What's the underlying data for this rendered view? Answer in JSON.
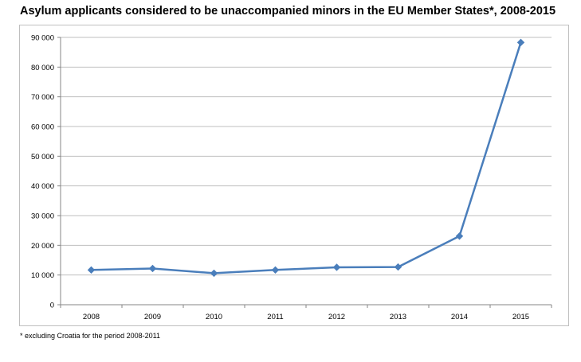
{
  "title": "Asylum applicants considered to be unaccompanied minors in the EU Member States*, 2008-2015",
  "footnote": "* excluding Croatia for the period 2008-2011",
  "colors": {
    "series": "#4a7ebb",
    "gridline": "#bfbfbf",
    "axis": "#868686"
  },
  "chart_data": {
    "type": "line",
    "title": "Asylum applicants considered to be unaccompanied minors in the EU Member States*, 2008-2015",
    "xlabel": "",
    "ylabel": "",
    "categories": [
      "2008",
      "2009",
      "2010",
      "2011",
      "2012",
      "2013",
      "2014",
      "2015"
    ],
    "values": [
      11700,
      12200,
      10600,
      11700,
      12600,
      12700,
      23100,
      88300
    ],
    "ylim": [
      0,
      90000
    ],
    "yticks": [
      0,
      10000,
      20000,
      30000,
      40000,
      50000,
      60000,
      70000,
      80000,
      90000
    ],
    "ytick_labels": [
      "0",
      "10 000",
      "20 000",
      "30 000",
      "40 000",
      "50 000",
      "60 000",
      "70 000",
      "80 000",
      "90 000"
    ],
    "grid": true,
    "legend": false,
    "marker": "diamond"
  }
}
